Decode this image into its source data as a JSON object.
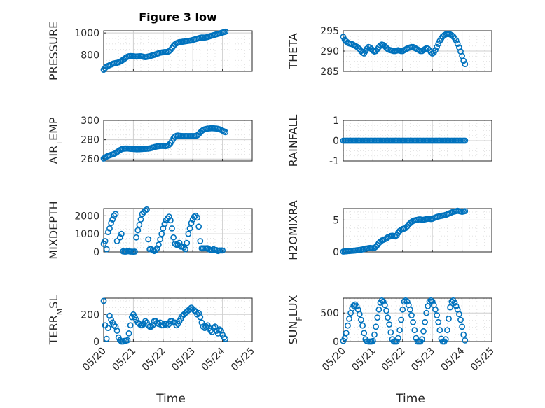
{
  "figure_title": "Figure 3 low",
  "x_axis_label": "Time",
  "x_tick_labels": [
    "05/20",
    "05/21",
    "05/22",
    "05/23",
    "05/24",
    "05/25"
  ],
  "marker_color": "#0072bd",
  "chart_data": [
    {
      "type": "scatter",
      "ylabel": "PRESSURE",
      "ylim": [
        650,
        1020
      ],
      "yticks": [
        800,
        1000
      ],
      "x": [
        0.0,
        0.05,
        0.1,
        0.15,
        0.2,
        0.25,
        0.3,
        0.35,
        0.4,
        0.45,
        0.5,
        0.55,
        0.6,
        0.65,
        0.7,
        0.75,
        0.8,
        0.85,
        0.9,
        0.95,
        1.0,
        1.05,
        1.1,
        1.15,
        1.2,
        1.25,
        1.3,
        1.35,
        1.4,
        1.45,
        1.5,
        1.55,
        1.6,
        1.65,
        1.7,
        1.75,
        1.8,
        1.85,
        1.9,
        1.95,
        2.0,
        2.05,
        2.1,
        2.15,
        2.2,
        2.25,
        2.3,
        2.35,
        2.4,
        2.45,
        2.5,
        2.55,
        2.6,
        2.65,
        2.7,
        2.75,
        2.8,
        2.85,
        2.9,
        2.95,
        3.0,
        3.05,
        3.1,
        3.15,
        3.2,
        3.25,
        3.3,
        3.35,
        3.4,
        3.45,
        3.5,
        3.55,
        3.6,
        3.65,
        3.7,
        3.75,
        3.8,
        3.85,
        3.9,
        3.95,
        4.0,
        4.05,
        4.1
      ],
      "y": [
        665,
        680,
        692,
        700,
        706,
        712,
        718,
        722,
        725,
        728,
        732,
        738,
        745,
        755,
        765,
        775,
        783,
        788,
        790,
        790,
        788,
        786,
        785,
        786,
        788,
        788,
        785,
        782,
        780,
        782,
        785,
        788,
        792,
        797,
        800,
        805,
        810,
        815,
        820,
        822,
        825,
        826,
        826,
        828,
        834,
        846,
        862,
        880,
        896,
        906,
        912,
        916,
        918,
        920,
        922,
        924,
        926,
        928,
        930,
        932,
        936,
        940,
        944,
        948,
        952,
        956,
        958,
        958,
        958,
        960,
        964,
        968,
        972,
        976,
        980,
        984,
        988,
        992,
        996,
        1000,
        1004,
        1008,
        1012
      ]
    },
    {
      "type": "scatter",
      "ylabel": "THETA",
      "ylim": [
        285,
        295
      ],
      "yticks": [
        285,
        290,
        295
      ],
      "x": [
        0.0,
        0.05,
        0.1,
        0.15,
        0.2,
        0.25,
        0.3,
        0.35,
        0.4,
        0.45,
        0.5,
        0.55,
        0.6,
        0.65,
        0.7,
        0.75,
        0.8,
        0.85,
        0.9,
        0.95,
        1.0,
        1.05,
        1.1,
        1.15,
        1.2,
        1.25,
        1.3,
        1.35,
        1.4,
        1.45,
        1.5,
        1.55,
        1.6,
        1.65,
        1.7,
        1.75,
        1.8,
        1.85,
        1.9,
        1.95,
        2.0,
        2.05,
        2.1,
        2.15,
        2.2,
        2.25,
        2.3,
        2.35,
        2.4,
        2.45,
        2.5,
        2.55,
        2.6,
        2.65,
        2.7,
        2.75,
        2.8,
        2.85,
        2.9,
        2.95,
        3.0,
        3.05,
        3.1,
        3.15,
        3.2,
        3.25,
        3.3,
        3.35,
        3.4,
        3.45,
        3.5,
        3.55,
        3.6,
        3.65,
        3.7,
        3.75,
        3.8,
        3.85,
        3.9,
        3.95,
        4.0,
        4.05,
        4.1
      ],
      "y": [
        293.5,
        292.8,
        292.4,
        292.1,
        291.9,
        291.8,
        291.7,
        291.5,
        291.3,
        291.1,
        290.8,
        290.5,
        290.0,
        289.6,
        289.4,
        290.0,
        290.6,
        291.0,
        290.9,
        290.5,
        290.1,
        289.9,
        290.0,
        290.5,
        291.0,
        291.4,
        291.6,
        291.5,
        291.2,
        290.8,
        290.5,
        290.3,
        290.2,
        290.1,
        290.0,
        290.0,
        290.1,
        290.2,
        290.1,
        290.0,
        290.0,
        290.2,
        290.4,
        290.6,
        290.8,
        290.9,
        291.0,
        291.0,
        290.8,
        290.6,
        290.4,
        290.2,
        290.0,
        290.0,
        290.2,
        290.5,
        290.7,
        290.6,
        290.2,
        289.7,
        289.4,
        289.6,
        290.2,
        291.0,
        291.8,
        292.5,
        293.1,
        293.6,
        293.9,
        294.1,
        294.2,
        294.2,
        294.1,
        293.9,
        293.6,
        293.2,
        292.6,
        291.8,
        290.9,
        289.9,
        288.8,
        287.6,
        286.8
      ]
    },
    {
      "type": "scatter",
      "ylabel": "AIR_TEMP",
      "ylim": [
        258,
        300
      ],
      "yticks": [
        260,
        280,
        300
      ],
      "x": [
        0.0,
        0.05,
        0.1,
        0.15,
        0.2,
        0.25,
        0.3,
        0.35,
        0.4,
        0.45,
        0.5,
        0.55,
        0.6,
        0.65,
        0.7,
        0.75,
        0.8,
        0.85,
        0.9,
        0.95,
        1.0,
        1.05,
        1.1,
        1.15,
        1.2,
        1.25,
        1.3,
        1.35,
        1.4,
        1.45,
        1.5,
        1.55,
        1.6,
        1.65,
        1.7,
        1.75,
        1.8,
        1.85,
        1.9,
        1.95,
        2.0,
        2.05,
        2.1,
        2.15,
        2.2,
        2.25,
        2.3,
        2.35,
        2.4,
        2.45,
        2.5,
        2.55,
        2.6,
        2.65,
        2.7,
        2.75,
        2.8,
        2.85,
        2.9,
        2.95,
        3.0,
        3.05,
        3.1,
        3.15,
        3.2,
        3.25,
        3.3,
        3.35,
        3.4,
        3.45,
        3.5,
        3.55,
        3.6,
        3.65,
        3.7,
        3.75,
        3.8,
        3.85,
        3.9,
        3.95,
        4.0,
        4.05,
        4.1
      ],
      "y": [
        260.5,
        261.5,
        262.5,
        263.3,
        263.9,
        264.4,
        264.8,
        265.4,
        266.2,
        267.2,
        268.3,
        269.3,
        270.1,
        270.6,
        270.8,
        270.9,
        270.9,
        270.8,
        270.6,
        270.5,
        270.4,
        270.3,
        270.2,
        270.2,
        270.2,
        270.3,
        270.4,
        270.5,
        270.6,
        270.7,
        270.8,
        271.0,
        271.4,
        271.9,
        272.4,
        272.8,
        273.1,
        273.3,
        273.5,
        273.6,
        273.6,
        273.5,
        273.5,
        273.8,
        274.8,
        276.5,
        278.8,
        281.3,
        283.2,
        284.1,
        284.3,
        284.1,
        283.9,
        283.8,
        283.8,
        283.8,
        283.8,
        283.8,
        283.8,
        283.8,
        283.8,
        283.8,
        283.9,
        284.5,
        285.8,
        287.5,
        289.0,
        290.1,
        290.8,
        291.2,
        291.5,
        291.7,
        291.8,
        291.8,
        291.8,
        291.7,
        291.6,
        291.3,
        290.8,
        290.2,
        289.4,
        288.6,
        287.8
      ]
    },
    {
      "type": "scatter",
      "ylabel": "RAINFALL",
      "ylim": [
        -1,
        1
      ],
      "yticks": [
        -1,
        0,
        1
      ],
      "x": [
        0.0,
        0.05,
        0.1,
        0.15,
        0.2,
        0.25,
        0.3,
        0.35,
        0.4,
        0.45,
        0.5,
        0.55,
        0.6,
        0.65,
        0.7,
        0.75,
        0.8,
        0.85,
        0.9,
        0.95,
        1.0,
        1.05,
        1.1,
        1.15,
        1.2,
        1.25,
        1.3,
        1.35,
        1.4,
        1.45,
        1.5,
        1.55,
        1.6,
        1.65,
        1.7,
        1.75,
        1.8,
        1.85,
        1.9,
        1.95,
        2.0,
        2.05,
        2.1,
        2.15,
        2.2,
        2.25,
        2.3,
        2.35,
        2.4,
        2.45,
        2.5,
        2.55,
        2.6,
        2.65,
        2.7,
        2.75,
        2.8,
        2.85,
        2.9,
        2.95,
        3.0,
        3.05,
        3.1,
        3.15,
        3.2,
        3.25,
        3.3,
        3.35,
        3.4,
        3.45,
        3.5,
        3.55,
        3.6,
        3.65,
        3.7,
        3.75,
        3.8,
        3.85,
        3.9,
        3.95,
        4.0,
        4.05,
        4.1
      ],
      "y": [
        0,
        0,
        0,
        0,
        0,
        0,
        0,
        0,
        0,
        0,
        0,
        0,
        0,
        0,
        0,
        0,
        0,
        0,
        0,
        0,
        0,
        0,
        0,
        0,
        0,
        0,
        0,
        0,
        0,
        0,
        0,
        0,
        0,
        0,
        0,
        0,
        0,
        0,
        0,
        0,
        0,
        0,
        0,
        0,
        0,
        0,
        0,
        0,
        0,
        0,
        0,
        0,
        0,
        0,
        0,
        0,
        0,
        0,
        0,
        0,
        0,
        0,
        0,
        0,
        0,
        0,
        0,
        0,
        0,
        0,
        0,
        0,
        0,
        0,
        0,
        0,
        0,
        0,
        0,
        0,
        0,
        0,
        0
      ]
    },
    {
      "type": "scatter",
      "ylabel": "MIXDEPTH",
      "ylim": [
        0,
        2400
      ],
      "yticks": [
        0,
        1000,
        2000
      ],
      "x": [
        0.0,
        0.05,
        0.1,
        0.15,
        0.2,
        0.25,
        0.3,
        0.35,
        0.4,
        0.45,
        0.55,
        0.6,
        0.65,
        0.7,
        0.75,
        0.8,
        0.85,
        0.9,
        0.95,
        1.0,
        1.05,
        1.1,
        1.15,
        1.2,
        1.25,
        1.3,
        1.35,
        1.4,
        1.45,
        1.5,
        1.55,
        1.6,
        1.65,
        1.7,
        1.75,
        1.8,
        1.85,
        1.9,
        1.95,
        2.0,
        2.05,
        2.1,
        2.15,
        2.2,
        2.25,
        2.3,
        2.35,
        2.4,
        2.45,
        2.5,
        2.55,
        2.6,
        2.65,
        2.7,
        2.75,
        2.8,
        2.85,
        2.9,
        2.95,
        3.0,
        3.05,
        3.1,
        3.15,
        3.2,
        3.25,
        3.3,
        3.35,
        3.4,
        3.45,
        3.5,
        3.55,
        3.6,
        3.65,
        3.7,
        3.75,
        3.8,
        3.85,
        3.9,
        3.95,
        4.0
      ],
      "y": [
        450,
        600,
        150,
        1100,
        1300,
        1600,
        1800,
        2000,
        2100,
        600,
        800,
        1000,
        30,
        20,
        20,
        40,
        40,
        20,
        20,
        10,
        20,
        800,
        1200,
        1500,
        1800,
        2100,
        2200,
        2300,
        2350,
        700,
        150,
        150,
        100,
        50,
        100,
        200,
        400,
        700,
        1000,
        1300,
        1550,
        1750,
        1850,
        1950,
        1750,
        1300,
        800,
        450,
        400,
        400,
        500,
        300,
        300,
        250,
        150,
        500,
        1000,
        1300,
        1600,
        1800,
        1950,
        2000,
        1900,
        1400,
        600,
        200,
        200,
        200,
        200,
        200,
        150,
        100,
        100,
        150,
        100,
        100,
        50,
        80,
        80,
        80
      ]
    },
    {
      "type": "scatter",
      "ylabel": "H2OMIXRA",
      "ylim": [
        0,
        6.8
      ],
      "yticks": [
        0,
        5
      ],
      "x": [
        0.0,
        0.05,
        0.1,
        0.15,
        0.2,
        0.25,
        0.3,
        0.35,
        0.4,
        0.45,
        0.5,
        0.55,
        0.6,
        0.65,
        0.7,
        0.75,
        0.8,
        0.85,
        0.9,
        0.95,
        1.0,
        1.05,
        1.1,
        1.15,
        1.2,
        1.25,
        1.3,
        1.35,
        1.4,
        1.45,
        1.5,
        1.55,
        1.6,
        1.65,
        1.7,
        1.75,
        1.8,
        1.85,
        1.9,
        1.95,
        2.0,
        2.05,
        2.1,
        2.15,
        2.2,
        2.25,
        2.3,
        2.35,
        2.4,
        2.45,
        2.5,
        2.55,
        2.6,
        2.65,
        2.7,
        2.75,
        2.8,
        2.85,
        2.9,
        2.95,
        3.0,
        3.05,
        3.1,
        3.15,
        3.2,
        3.25,
        3.3,
        3.35,
        3.4,
        3.45,
        3.5,
        3.55,
        3.6,
        3.65,
        3.7,
        3.75,
        3.8,
        3.85,
        3.9,
        3.95,
        4.0,
        4.05,
        4.1
      ],
      "y": [
        0.05,
        0.08,
        0.1,
        0.12,
        0.14,
        0.16,
        0.18,
        0.2,
        0.22,
        0.25,
        0.28,
        0.3,
        0.35,
        0.4,
        0.45,
        0.5,
        0.55,
        0.6,
        0.62,
        0.6,
        0.6,
        0.65,
        0.8,
        1.1,
        1.4,
        1.6,
        1.8,
        1.9,
        2.0,
        2.1,
        2.3,
        2.4,
        2.5,
        2.55,
        2.5,
        2.45,
        2.6,
        3.0,
        3.3,
        3.5,
        3.6,
        3.65,
        3.75,
        4.0,
        4.3,
        4.5,
        4.7,
        4.85,
        4.95,
        5.0,
        5.05,
        5.1,
        5.1,
        5.05,
        5.05,
        5.1,
        5.15,
        5.2,
        5.2,
        5.15,
        5.2,
        5.3,
        5.4,
        5.5,
        5.55,
        5.6,
        5.65,
        5.7,
        5.75,
        5.8,
        5.9,
        6.0,
        6.1,
        6.2,
        6.3,
        6.35,
        6.4,
        6.45,
        6.4,
        6.35,
        6.3,
        6.35,
        6.4
      ]
    },
    {
      "type": "scatter",
      "ylabel": "TERR_MSL",
      "ylim": [
        0,
        320
      ],
      "yticks": [
        0,
        200
      ],
      "x": [
        0.0,
        0.05,
        0.1,
        0.15,
        0.2,
        0.25,
        0.3,
        0.35,
        0.4,
        0.45,
        0.5,
        0.55,
        0.6,
        0.65,
        0.7,
        0.75,
        0.8,
        0.85,
        0.9,
        0.95,
        1.0,
        1.05,
        1.1,
        1.15,
        1.2,
        1.25,
        1.3,
        1.35,
        1.4,
        1.45,
        1.5,
        1.55,
        1.6,
        1.65,
        1.7,
        1.75,
        1.8,
        1.85,
        1.9,
        1.95,
        2.0,
        2.05,
        2.1,
        2.15,
        2.2,
        2.25,
        2.3,
        2.35,
        2.4,
        2.45,
        2.5,
        2.55,
        2.6,
        2.65,
        2.7,
        2.75,
        2.8,
        2.85,
        2.9,
        2.95,
        3.0,
        3.05,
        3.1,
        3.15,
        3.2,
        3.25,
        3.3,
        3.35,
        3.4,
        3.45,
        3.5,
        3.55,
        3.6,
        3.65,
        3.7,
        3.75,
        3.8,
        3.85,
        3.9,
        3.95,
        4.0,
        4.05,
        4.1
      ],
      "y": [
        300,
        120,
        20,
        100,
        190,
        160,
        140,
        120,
        110,
        80,
        30,
        10,
        0,
        0,
        5,
        5,
        10,
        60,
        120,
        180,
        200,
        180,
        160,
        140,
        130,
        120,
        120,
        130,
        150,
        140,
        120,
        110,
        110,
        120,
        150,
        150,
        140,
        130,
        140,
        120,
        120,
        130,
        130,
        120,
        130,
        150,
        150,
        140,
        140,
        120,
        130,
        150,
        170,
        190,
        200,
        210,
        220,
        230,
        240,
        250,
        240,
        230,
        220,
        200,
        210,
        180,
        140,
        110,
        100,
        110,
        120,
        100,
        80,
        70,
        100,
        110,
        80,
        60,
        90,
        80,
        50,
        30,
        20
      ]
    },
    {
      "type": "scatter",
      "ylabel": "SUN_FLUX",
      "ylim": [
        0,
        760
      ],
      "yticks": [
        0,
        500
      ],
      "x": [
        0.0,
        0.05,
        0.1,
        0.15,
        0.2,
        0.25,
        0.3,
        0.35,
        0.4,
        0.45,
        0.5,
        0.55,
        0.6,
        0.65,
        0.7,
        0.75,
        0.8,
        0.85,
        0.9,
        0.95,
        1.0,
        1.05,
        1.1,
        1.15,
        1.2,
        1.25,
        1.3,
        1.35,
        1.4,
        1.45,
        1.5,
        1.55,
        1.6,
        1.65,
        1.7,
        1.75,
        1.8,
        1.85,
        1.9,
        1.95,
        2.0,
        2.05,
        2.1,
        2.15,
        2.2,
        2.25,
        2.3,
        2.35,
        2.4,
        2.45,
        2.5,
        2.55,
        2.6,
        2.65,
        2.7,
        2.75,
        2.8,
        2.85,
        2.9,
        2.95,
        3.0,
        3.05,
        3.1,
        3.15,
        3.2,
        3.25,
        3.3,
        3.35,
        3.4,
        3.45,
        3.5,
        3.55,
        3.6,
        3.65,
        3.7,
        3.75,
        3.8,
        3.85,
        3.9,
        3.95,
        4.0,
        4.05,
        4.1
      ],
      "y": [
        10,
        60,
        150,
        280,
        400,
        500,
        580,
        630,
        650,
        620,
        560,
        480,
        380,
        280,
        150,
        40,
        5,
        0,
        0,
        0,
        10,
        120,
        260,
        420,
        560,
        680,
        720,
        700,
        640,
        540,
        420,
        300,
        160,
        40,
        0,
        0,
        0,
        60,
        200,
        380,
        560,
        700,
        720,
        700,
        640,
        560,
        460,
        340,
        200,
        60,
        0,
        0,
        0,
        40,
        180,
        340,
        500,
        620,
        700,
        720,
        700,
        640,
        560,
        460,
        340,
        200,
        50,
        0,
        0,
        40,
        200,
        400,
        600,
        700,
        720,
        680,
        620,
        560,
        480,
        380,
        260,
        120,
        20
      ]
    }
  ]
}
